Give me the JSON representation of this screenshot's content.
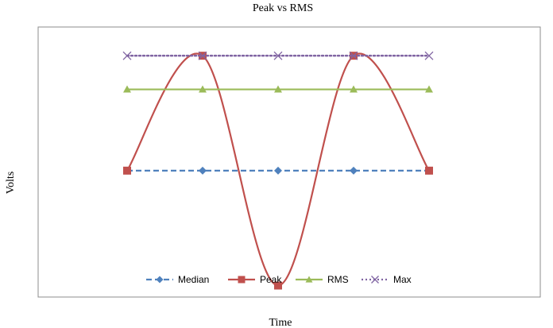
{
  "chart_data": {
    "type": "line",
    "title": "Peak vs RMS",
    "xlabel": "Time",
    "ylabel": "Volts",
    "x": [
      1,
      2,
      3,
      4,
      5
    ],
    "ylim": [
      -1.1,
      1.25
    ],
    "grid": false,
    "legend_position": "bottom",
    "series": [
      {
        "name": "Median",
        "values": [
          0,
          0,
          0,
          0,
          0
        ],
        "color": "#4F81BD",
        "style": "dashed",
        "marker": "diamond",
        "smooth": false
      },
      {
        "name": "Peak",
        "values": [
          0,
          1,
          -1,
          1,
          0
        ],
        "color": "#C0504D",
        "style": "solid",
        "marker": "square",
        "smooth": true
      },
      {
        "name": "RMS",
        "values": [
          0.707,
          0.707,
          0.707,
          0.707,
          0.707
        ],
        "color": "#9BBB59",
        "style": "solid",
        "marker": "triangle",
        "smooth": false
      },
      {
        "name": "Max",
        "values": [
          1,
          1,
          1,
          1,
          1
        ],
        "color": "#8064A2",
        "style": "dotted",
        "marker": "x",
        "smooth": false
      }
    ]
  }
}
